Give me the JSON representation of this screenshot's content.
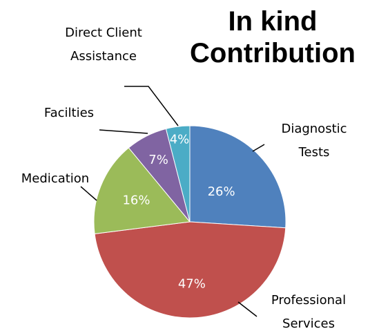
{
  "chart_data": {
    "type": "pie",
    "title": "In kind Contribution",
    "categories": [
      "Diagnostic Tests",
      "Professional Services",
      "Medication",
      "Facilties",
      "Direct Client Assistance"
    ],
    "values": [
      26,
      47,
      16,
      7,
      4
    ],
    "value_labels": [
      "26%",
      "47%",
      "16%",
      "7%",
      "4%"
    ],
    "colors": [
      "#4f81bd",
      "#c0504d",
      "#9bbb59",
      "#8064a2",
      "#4bacc6"
    ]
  }
}
